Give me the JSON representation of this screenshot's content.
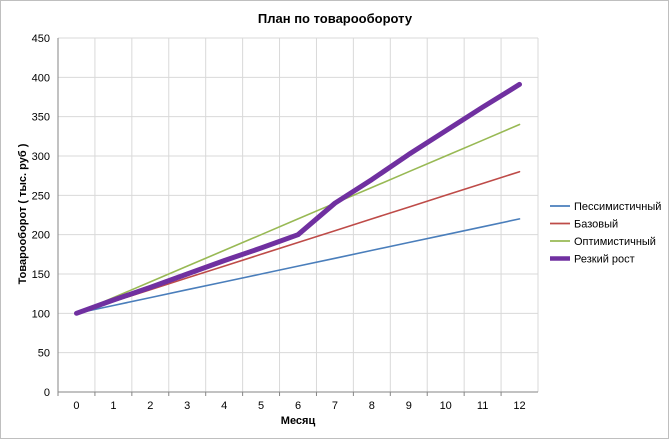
{
  "chart_data": {
    "type": "line",
    "title": "План по товарообороту",
    "xlabel": "Месяц",
    "ylabel": "Товарооборот  ( тыс. руб )",
    "x": [
      0,
      1,
      2,
      3,
      4,
      5,
      6,
      7,
      8,
      9,
      10,
      11,
      12
    ],
    "xlim": [
      0,
      12
    ],
    "ylim": [
      0,
      450
    ],
    "yticks": [
      0,
      50,
      100,
      150,
      200,
      250,
      300,
      350,
      400,
      450
    ],
    "grid": true,
    "legend_position": "right",
    "series": [
      {
        "name": "Пессимистичный",
        "color": "#4a7ebb",
        "values": [
          100,
          110,
          120,
          130,
          140,
          150,
          160,
          170,
          180,
          190,
          200,
          210,
          220
        ]
      },
      {
        "name": "Базовый",
        "color": "#be4b48",
        "values": [
          100,
          115,
          130,
          145,
          160,
          175,
          190,
          205,
          220,
          235,
          250,
          265,
          280
        ]
      },
      {
        "name": "Оптимистичный",
        "color": "#98b954",
        "values": [
          100,
          120,
          140,
          160,
          180,
          200,
          220,
          240,
          260,
          280,
          300,
          320,
          340
        ]
      },
      {
        "name": "Резкий рост",
        "color": "#7030a0",
        "bold": true,
        "values": [
          100,
          117,
          133,
          150,
          167,
          183,
          200,
          240,
          270,
          302,
          332,
          362,
          391
        ]
      }
    ]
  }
}
